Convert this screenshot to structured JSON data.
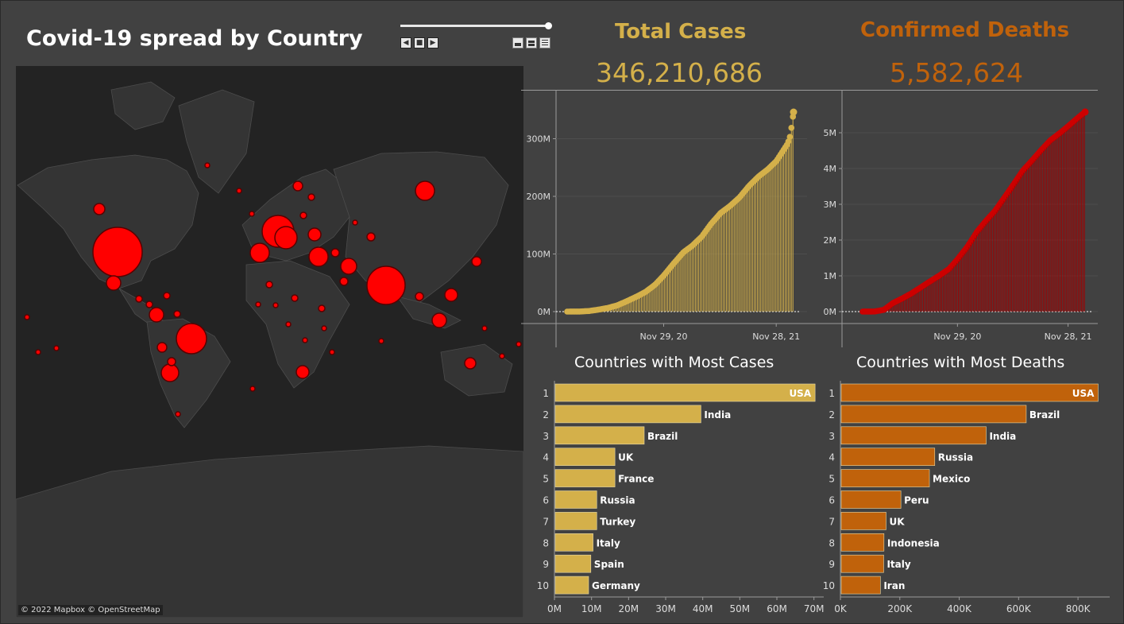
{
  "dashboard": {
    "title": "Covid-19 spread by Country",
    "map_credit": "© 2022 Mapbox © OpenStreetMap"
  },
  "kpis": {
    "total_cases_label": "Total Cases",
    "total_cases_value": "346,210,686",
    "deaths_label": "Confirmed Deaths",
    "deaths_value": "5,582,624"
  },
  "colors": {
    "background": "#414141",
    "cases_accent": "#d4b04a",
    "deaths_accent": "#c0620b",
    "deaths_line": "#cc0000",
    "map_bubble": "#ff0000"
  },
  "icons": [
    "play-back-icon",
    "stop-icon",
    "play-forward-icon",
    "view-single-icon",
    "view-double-icon",
    "view-list-icon"
  ],
  "chart_data": [
    {
      "type": "area",
      "name": "cases-timeline",
      "x_ticks": [
        "Nov 29, 20",
        "Nov 28, 21"
      ],
      "y_ticks": [
        "0M",
        "100M",
        "200M",
        "300M"
      ],
      "ylim": [
        0,
        360
      ],
      "y_unit": "M",
      "x_range": [
        "2020-01-22",
        "2022-01-23"
      ],
      "points": [
        [
          "2020-01-22",
          0
        ],
        [
          "2020-03-01",
          0.1
        ],
        [
          "2020-04-01",
          1
        ],
        [
          "2020-05-01",
          3.3
        ],
        [
          "2020-06-01",
          6.3
        ],
        [
          "2020-07-01",
          10.6
        ],
        [
          "2020-08-01",
          17.8
        ],
        [
          "2020-09-01",
          25.6
        ],
        [
          "2020-10-01",
          34
        ],
        [
          "2020-11-01",
          46.5
        ],
        [
          "2020-11-29",
          62.5
        ],
        [
          "2021-01-01",
          84
        ],
        [
          "2021-02-01",
          103
        ],
        [
          "2021-03-01",
          114
        ],
        [
          "2021-04-01",
          130
        ],
        [
          "2021-05-01",
          152
        ],
        [
          "2021-06-01",
          171
        ],
        [
          "2021-07-01",
          183
        ],
        [
          "2021-08-01",
          198
        ],
        [
          "2021-09-01",
          218
        ],
        [
          "2021-10-01",
          234
        ],
        [
          "2021-11-01",
          247
        ],
        [
          "2021-11-28",
          261
        ],
        [
          "2022-01-01",
          289
        ],
        [
          "2022-01-10",
          300
        ],
        [
          "2022-01-17",
          322
        ],
        [
          "2022-01-23",
          346.2
        ]
      ]
    },
    {
      "type": "area",
      "name": "deaths-timeline",
      "x_ticks": [
        "Nov 29, 20",
        "Nov 28, 21"
      ],
      "y_ticks": [
        "0M",
        "1M",
        "2M",
        "3M",
        "4M",
        "5M"
      ],
      "ylim": [
        0,
        5.8
      ],
      "y_unit": "M",
      "x_range": [
        "2020-01-22",
        "2022-01-23"
      ],
      "points": [
        [
          "2020-01-22",
          0
        ],
        [
          "2020-03-01",
          0.003
        ],
        [
          "2020-04-01",
          0.05
        ],
        [
          "2020-05-01",
          0.24
        ],
        [
          "2020-06-01",
          0.37
        ],
        [
          "2020-07-01",
          0.51
        ],
        [
          "2020-08-01",
          0.68
        ],
        [
          "2020-09-01",
          0.85
        ],
        [
          "2020-10-01",
          1.01
        ],
        [
          "2020-11-01",
          1.19
        ],
        [
          "2020-11-29",
          1.46
        ],
        [
          "2021-01-01",
          1.82
        ],
        [
          "2021-02-01",
          2.23
        ],
        [
          "2021-03-01",
          2.52
        ],
        [
          "2021-04-01",
          2.81
        ],
        [
          "2021-05-01",
          3.17
        ],
        [
          "2021-06-01",
          3.55
        ],
        [
          "2021-07-01",
          3.93
        ],
        [
          "2021-08-01",
          4.22
        ],
        [
          "2021-09-01",
          4.52
        ],
        [
          "2021-10-01",
          4.79
        ],
        [
          "2021-11-01",
          4.99
        ],
        [
          "2021-11-28",
          5.18
        ],
        [
          "2022-01-01",
          5.43
        ],
        [
          "2022-01-23",
          5.58
        ]
      ]
    },
    {
      "type": "bar",
      "name": "countries-most-cases",
      "title": "Countries with Most Cases",
      "ranks": [
        "1",
        "2",
        "3",
        "4",
        "5",
        "6",
        "7",
        "8",
        "9",
        "10"
      ],
      "categories": [
        "USA",
        "India",
        "Brazil",
        "UK",
        "France",
        "Russia",
        "Turkey",
        "Italy",
        "Spain",
        "Germany"
      ],
      "values": [
        70.1,
        39.3,
        24.0,
        16.1,
        16.1,
        11.2,
        11.2,
        10.2,
        9.6,
        9.0
      ],
      "value_unit": "M",
      "x_ticks": [
        "0M",
        "10M",
        "20M",
        "30M",
        "40M",
        "50M",
        "60M",
        "70M"
      ],
      "xlim": [
        0,
        70.5
      ]
    },
    {
      "type": "bar",
      "name": "countries-most-deaths",
      "title": "Countries with Most Deaths",
      "ranks": [
        "1",
        "2",
        "3",
        "4",
        "5",
        "6",
        "7",
        "8",
        "9",
        "10"
      ],
      "categories": [
        "USA",
        "Brazil",
        "India",
        "Russia",
        "Mexico",
        "Peru",
        "UK",
        "Indonesia",
        "Italy",
        "Iran"
      ],
      "values": [
        865,
        623,
        488,
        315,
        297,
        201,
        151,
        144,
        143,
        132
      ],
      "value_unit": "K",
      "x_ticks": [
        "0K",
        "200K",
        "400K",
        "600K",
        "800K"
      ],
      "xlim": [
        0,
        880
      ]
    }
  ]
}
